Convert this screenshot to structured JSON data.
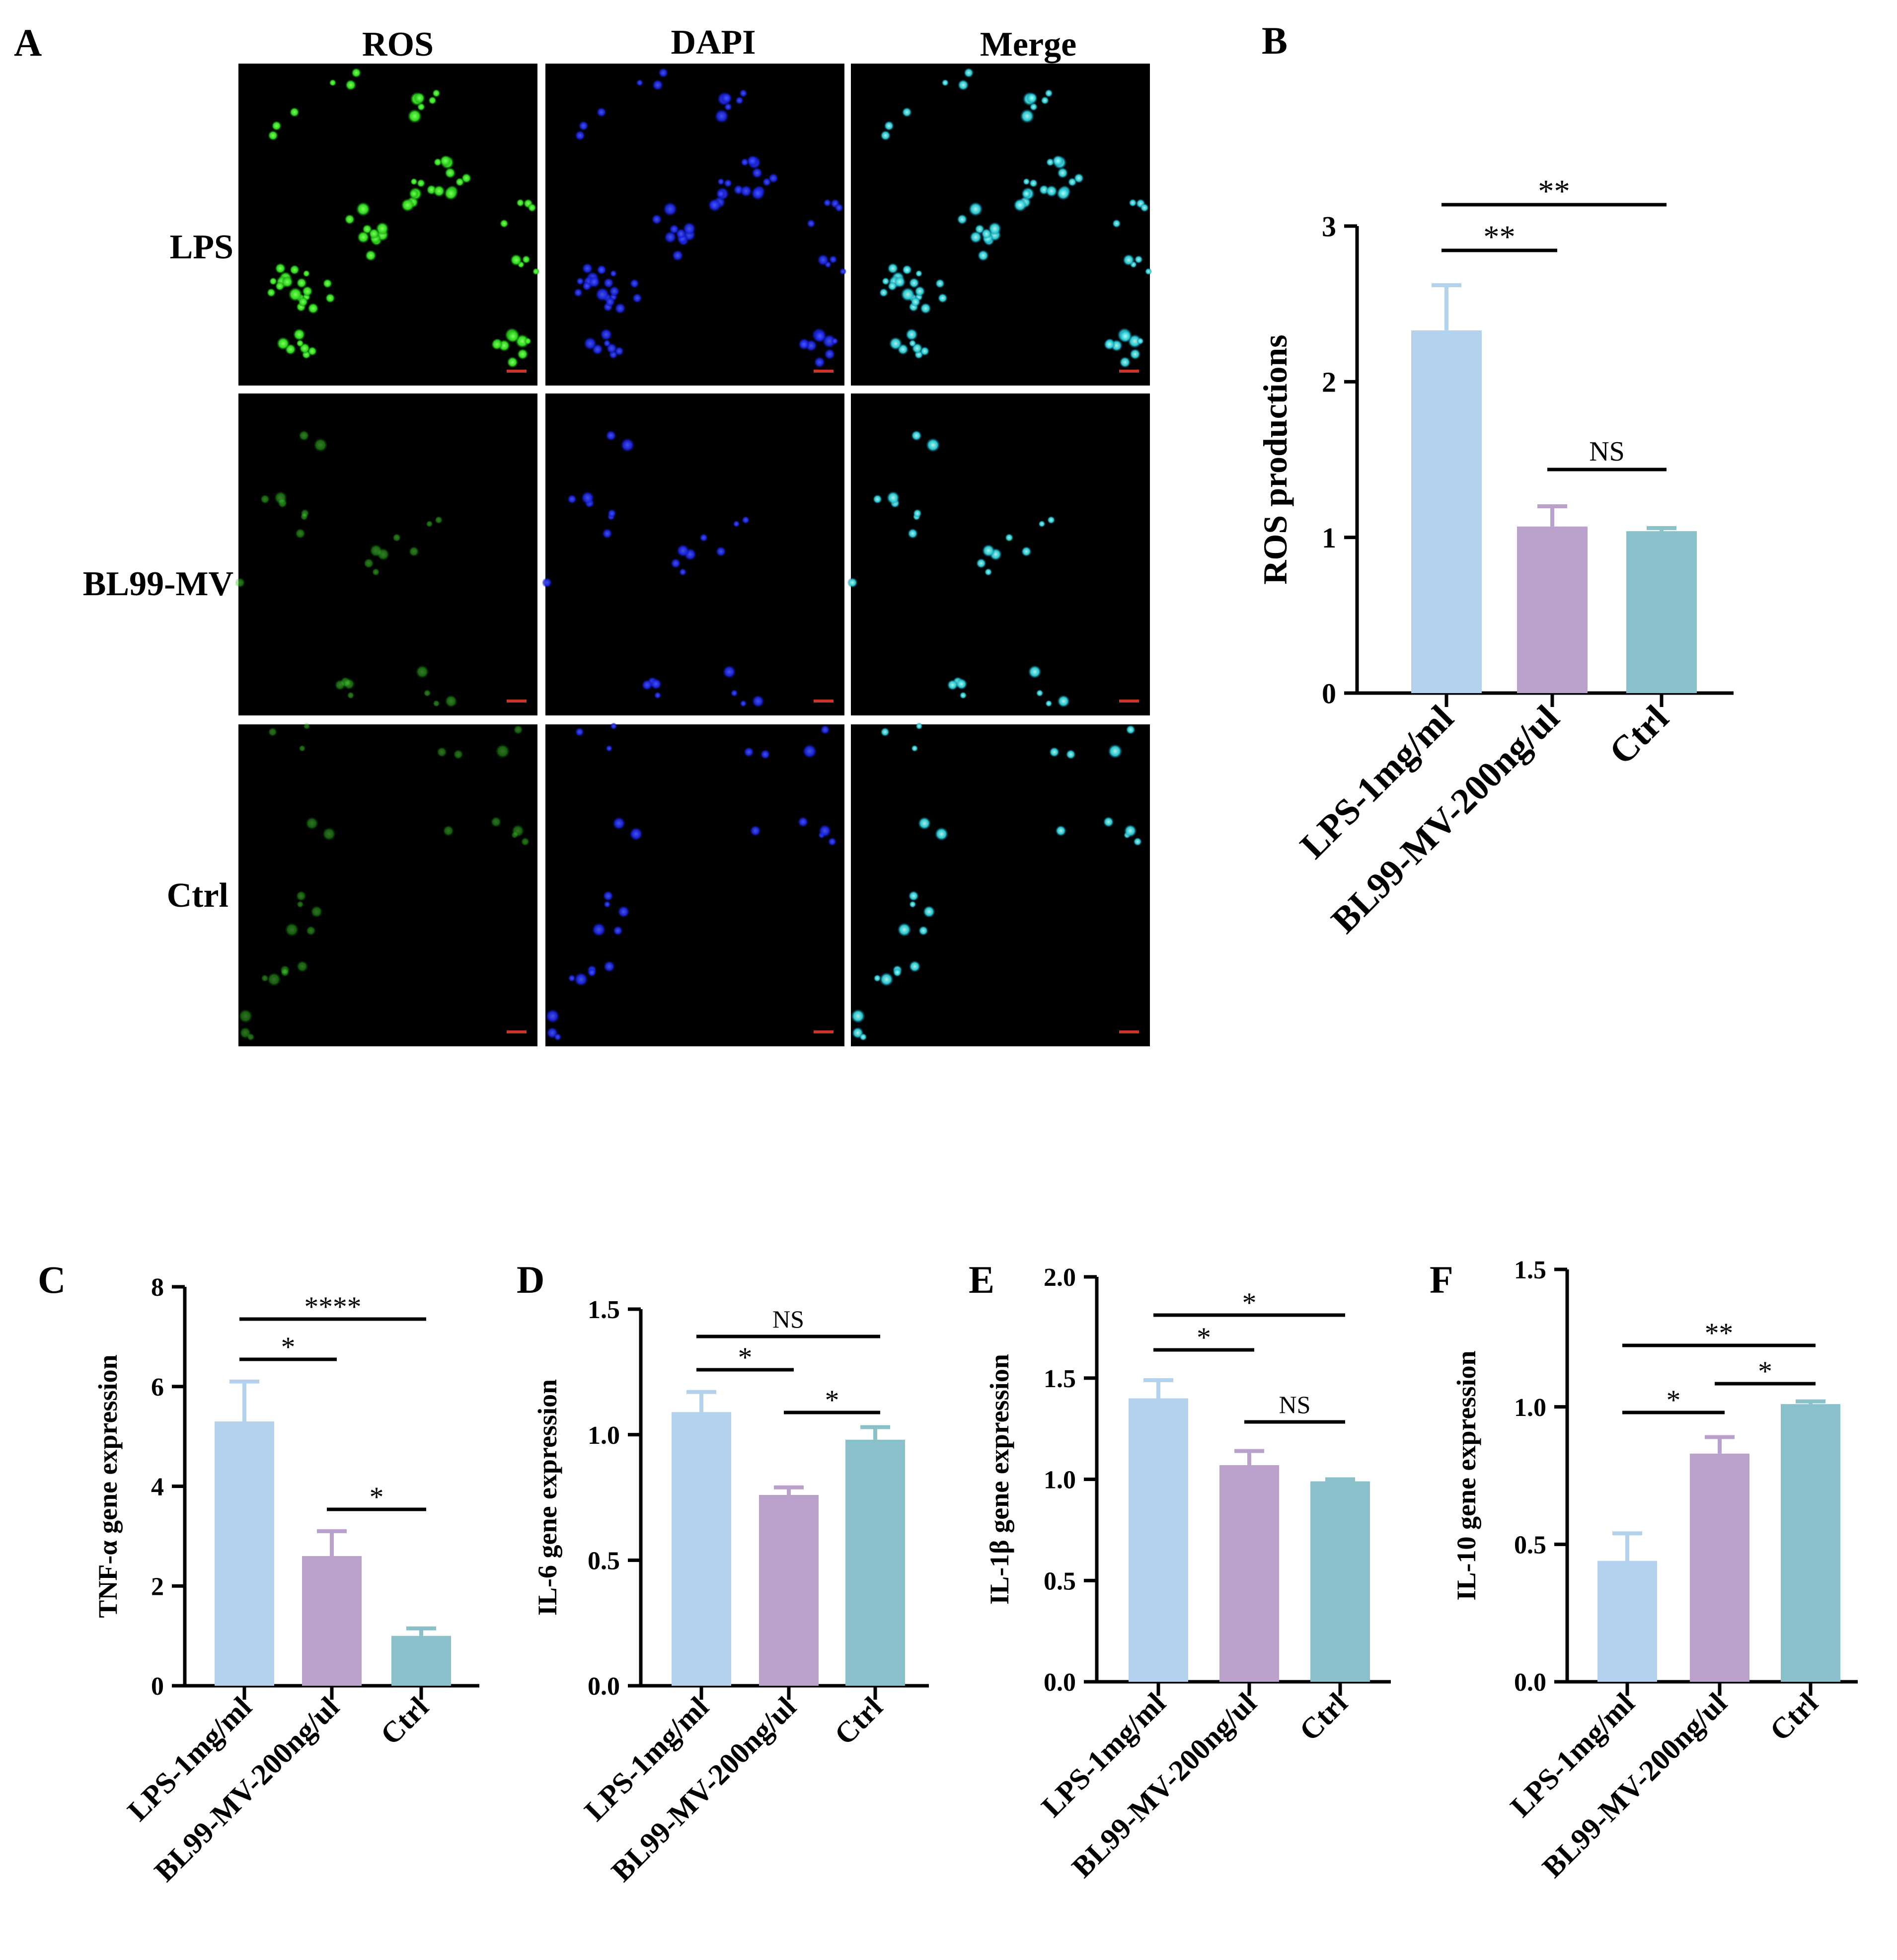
{
  "panel_a": {
    "letter": "A",
    "columns": [
      "ROS",
      "DAPI",
      "Merge"
    ],
    "rows": [
      "LPS",
      "BL99-MV",
      "Ctrl"
    ]
  },
  "chart_data": [
    {
      "letter": "B",
      "type": "bar",
      "ylabel": "ROS productions",
      "categories": [
        "LPS-1mg/ml",
        "BL99-MV-200ng/ul",
        "Ctrl"
      ],
      "values": [
        2.33,
        1.07,
        1.04
      ],
      "errors": [
        0.29,
        0.13,
        0.02
      ],
      "colors": [
        "#b3d2ee",
        "#b9a1cc",
        "#89c0ca"
      ],
      "ylim": [
        0,
        3
      ],
      "yticks": [
        "0",
        "1",
        "2",
        "3"
      ],
      "ytick_values": [
        0,
        1,
        2,
        3
      ],
      "significance": [
        {
          "from": 0,
          "to": 2,
          "label": "**"
        },
        {
          "from": 0,
          "to": 1,
          "label": "**"
        },
        {
          "from": 1,
          "to": 2,
          "label": "NS"
        }
      ]
    },
    {
      "letter": "C",
      "type": "bar",
      "ylabel": "TNF-α gene expression",
      "categories": [
        "LPS-1mg/ml",
        "BL99-MV-200ng/ul",
        "Ctrl"
      ],
      "values": [
        5.3,
        2.6,
        1.0
      ],
      "errors": [
        0.8,
        0.5,
        0.15
      ],
      "colors": [
        "#b3d2ee",
        "#b9a1cc",
        "#89c0ca"
      ],
      "ylim": [
        0,
        8
      ],
      "yticks": [
        "0",
        "2",
        "4",
        "6",
        "8"
      ],
      "ytick_values": [
        0,
        2,
        4,
        6,
        8
      ],
      "significance": [
        {
          "from": 0,
          "to": 2,
          "label": "****"
        },
        {
          "from": 0,
          "to": 1,
          "label": "*"
        },
        {
          "from": 1,
          "to": 2,
          "label": "*"
        }
      ]
    },
    {
      "letter": "D",
      "type": "bar",
      "ylabel": "IL-6 gene expression",
      "categories": [
        "LPS-1mg/ml",
        "BL99-MV-200ng/ul",
        "Ctrl"
      ],
      "values": [
        1.09,
        0.76,
        0.98
      ],
      "errors": [
        0.08,
        0.03,
        0.05
      ],
      "colors": [
        "#b3d2ee",
        "#b9a1cc",
        "#89c0ca"
      ],
      "ylim": [
        0,
        1.5
      ],
      "yticks": [
        "0.0",
        "0.5",
        "1.0",
        "1.5"
      ],
      "ytick_values": [
        0,
        0.5,
        1.0,
        1.5
      ],
      "significance": [
        {
          "from": 0,
          "to": 2,
          "label": "NS"
        },
        {
          "from": 0,
          "to": 1,
          "label": "*"
        },
        {
          "from": 1,
          "to": 2,
          "label": "*"
        }
      ]
    },
    {
      "letter": "E",
      "type": "bar",
      "ylabel": "IL-1β gene expression",
      "categories": [
        "LPS-1mg/ml",
        "BL99-MV-200ng/ul",
        "Ctrl"
      ],
      "values": [
        1.4,
        1.07,
        0.99
      ],
      "errors": [
        0.09,
        0.07,
        0.01
      ],
      "colors": [
        "#b3d2ee",
        "#b9a1cc",
        "#89c0ca"
      ],
      "ylim": [
        0,
        2.0
      ],
      "yticks": [
        "0.0",
        "0.5",
        "1.0",
        "1.5",
        "2.0"
      ],
      "ytick_values": [
        0,
        0.5,
        1.0,
        1.5,
        2.0
      ],
      "significance": [
        {
          "from": 0,
          "to": 2,
          "label": "*"
        },
        {
          "from": 0,
          "to": 1,
          "label": "*"
        },
        {
          "from": 1,
          "to": 2,
          "label": "NS"
        }
      ]
    },
    {
      "letter": "F",
      "type": "bar",
      "ylabel": "IL-10 gene expression",
      "categories": [
        "LPS-1mg/ml",
        "BL99-MV-200ng/ul",
        "Ctrl"
      ],
      "values": [
        0.44,
        0.83,
        1.01
      ],
      "errors": [
        0.1,
        0.06,
        0.01
      ],
      "colors": [
        "#b3d2ee",
        "#b9a1cc",
        "#89c0ca"
      ],
      "ylim": [
        0,
        1.5
      ],
      "yticks": [
        "0.0",
        "0.5",
        "1.0",
        "1.5"
      ],
      "ytick_values": [
        0,
        0.5,
        1.0,
        1.5
      ],
      "significance": [
        {
          "from": 0,
          "to": 2,
          "label": "**"
        },
        {
          "from": 0,
          "to": 1,
          "label": "*"
        },
        {
          "from": 1,
          "to": 2,
          "label": "*"
        }
      ]
    }
  ]
}
